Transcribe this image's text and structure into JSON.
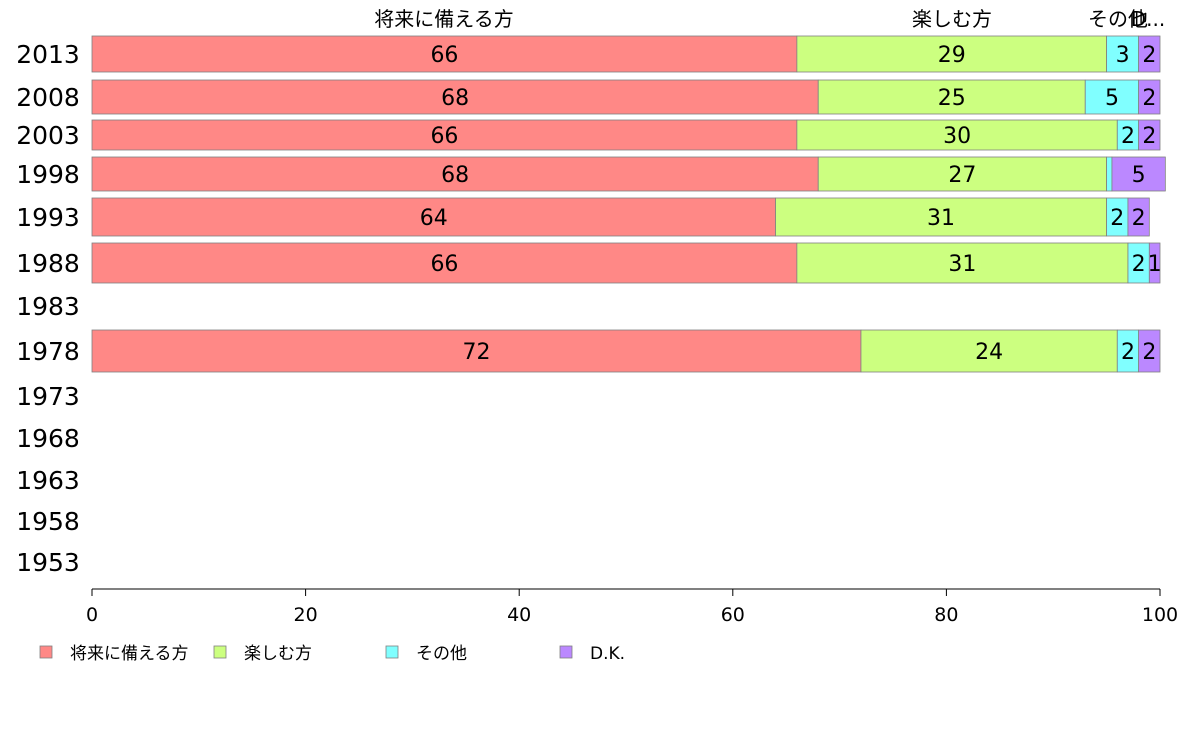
{
  "chart_data": {
    "type": "bar",
    "orientation": "horizontal",
    "stacked": true,
    "categories": [
      "2013",
      "2008",
      "2003",
      "1998",
      "1993",
      "1988",
      "1983",
      "1978",
      "1973",
      "1968",
      "1963",
      "1958",
      "1953"
    ],
    "series": [
      {
        "name": "将来に備える方",
        "color": "#ff8886",
        "values": [
          66,
          68,
          66,
          68,
          64,
          66,
          null,
          72,
          null,
          null,
          null,
          null,
          null
        ],
        "labels": [
          "66",
          "68",
          "66",
          "68",
          "64",
          "66",
          null,
          "72",
          null,
          null,
          null,
          null,
          null
        ]
      },
      {
        "name": "楽しむ方",
        "color": "#ccff80",
        "values": [
          29,
          25,
          30,
          27,
          31,
          31,
          null,
          24,
          null,
          null,
          null,
          null,
          null
        ],
        "labels": [
          "29",
          "25",
          "30",
          "27",
          "31",
          "31",
          null,
          "24",
          null,
          null,
          null,
          null,
          null
        ]
      },
      {
        "name": "その他",
        "color": "#80ffff",
        "values": [
          3,
          5,
          2,
          0.5,
          2,
          2,
          null,
          2,
          null,
          null,
          null,
          null,
          null
        ],
        "labels": [
          "3",
          "5",
          "2",
          null,
          "2",
          "2",
          null,
          "2",
          null,
          null,
          null,
          null,
          null
        ]
      },
      {
        "name": "D.K.",
        "color": "#bb88ff",
        "values": [
          2,
          2,
          2,
          5,
          2,
          1,
          null,
          2,
          null,
          null,
          null,
          null,
          null
        ],
        "labels": [
          "2",
          "2",
          "2",
          "5",
          "2",
          "1",
          null,
          "2",
          null,
          null,
          null,
          null,
          null
        ]
      }
    ],
    "top_labels": [
      "将来に備える方",
      "楽しむ方",
      "その他",
      "D..."
    ],
    "xlim": [
      0,
      100
    ],
    "xticks": [
      0,
      20,
      40,
      60,
      80,
      100
    ],
    "grid": false,
    "legend_position": "bottom-left"
  }
}
